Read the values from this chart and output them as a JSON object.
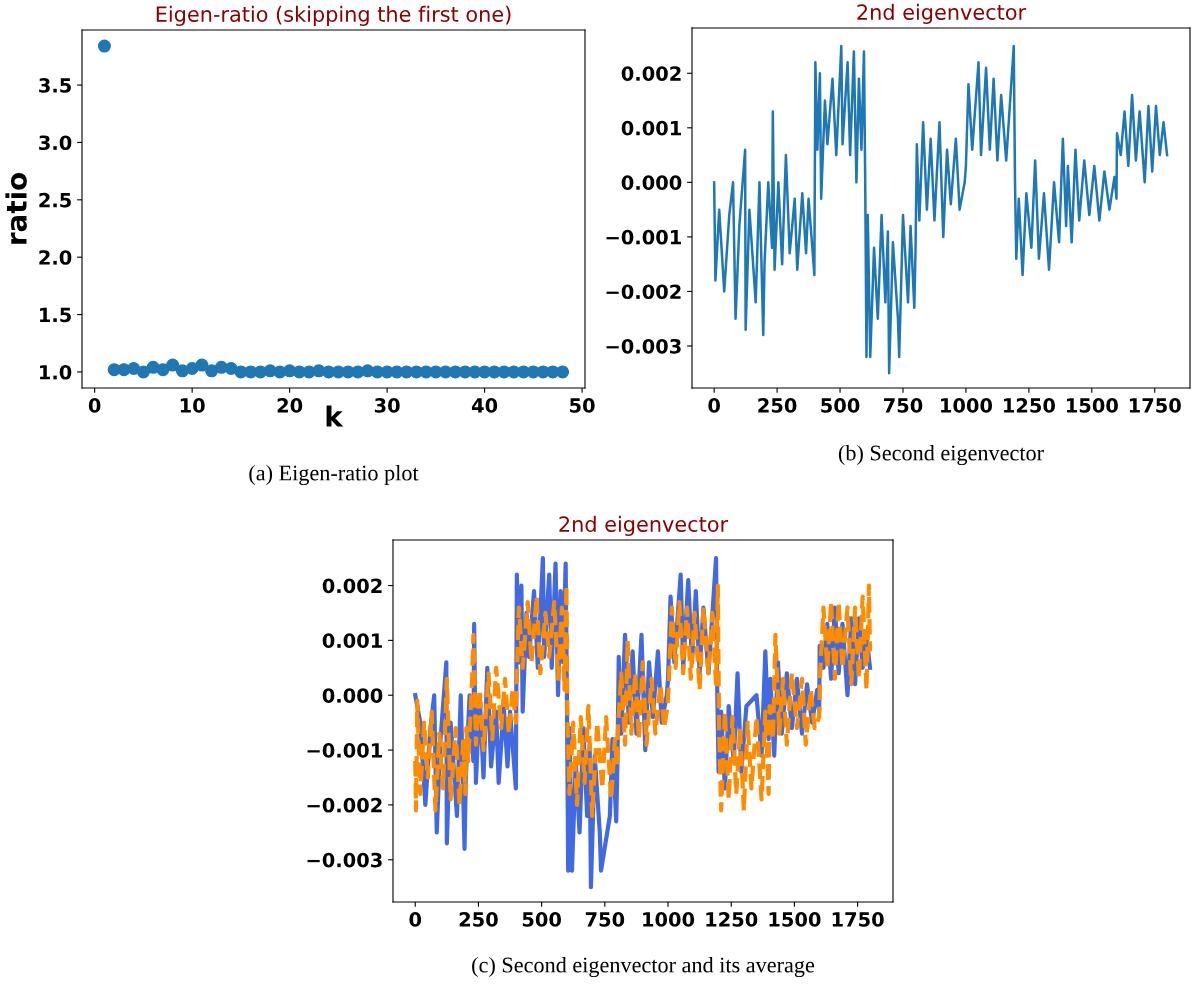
{
  "chart_data": [
    {
      "type": "scatter",
      "title": "Eigen-ratio (skipping the first one)",
      "xlabel": "k",
      "ylabel": "ratio",
      "marker": "circle",
      "grid": false,
      "x": [
        1,
        2,
        3,
        4,
        5,
        6,
        7,
        8,
        9,
        10,
        11,
        12,
        13,
        14,
        15,
        16,
        17,
        18,
        19,
        20,
        21,
        22,
        23,
        24,
        25,
        26,
        27,
        28,
        29,
        30,
        31,
        32,
        33,
        34,
        35,
        36,
        37,
        38,
        39,
        40,
        41,
        42,
        43,
        44,
        45,
        46,
        47,
        48
      ],
      "series": [
        {
          "color": "#1f77b4",
          "values": [
            3.84,
            1.02,
            1.02,
            1.03,
            1.0,
            1.04,
            1.02,
            1.06,
            1.01,
            1.03,
            1.06,
            1.01,
            1.04,
            1.03,
            1.0,
            1.0,
            1.0,
            1.01,
            1.0,
            1.01,
            1.0,
            1.0,
            1.01,
            1.0,
            1.0,
            1.0,
            1.0,
            1.01,
            1.0,
            1.0,
            1.0,
            1.0,
            1.0,
            1.0,
            1.0,
            1.0,
            1.0,
            1.0,
            1.0,
            1.0,
            1.0,
            1.0,
            1.0,
            1.0,
            1.0,
            1.0,
            1.0,
            1.0
          ]
        }
      ],
      "xlim": [
        -1.3,
        50.3
      ],
      "ylim": [
        0.86,
        3.98
      ],
      "xticks": [
        0,
        10,
        20,
        30,
        40,
        50
      ],
      "yticks": [
        {
          "value": 1.0,
          "label": "1.0"
        },
        {
          "value": 1.5,
          "label": "1.5"
        },
        {
          "value": 2.0,
          "label": "2.0"
        },
        {
          "value": 2.5,
          "label": "2.5"
        },
        {
          "value": 3.0,
          "label": "3.0"
        },
        {
          "value": 3.5,
          "label": "3.5"
        }
      ],
      "annotations": [
        "(a) Eigen-ratio plot"
      ]
    },
    {
      "type": "line",
      "title": "2nd eigenvector",
      "grid": false,
      "line_style": "solid",
      "series": [
        {
          "color": "#1f77b4",
          "x": [
            0,
            5,
            20,
            40,
            60,
            75,
            85,
            100,
            123,
            125,
            140,
            165,
            180,
            195,
            200,
            215,
            230,
            233,
            240,
            255,
            270,
            285,
            300,
            320,
            330,
            350,
            365,
            375,
            390,
            398,
            402,
            410,
            420,
            425,
            440,
            450,
            470,
            485,
            505,
            510,
            530,
            540,
            555,
            565,
            575,
            585,
            595,
            600,
            605,
            610,
            620,
            635,
            650,
            665,
            680,
            690,
            695,
            710,
            730,
            735,
            750,
            770,
            780,
            795,
            800,
            805,
            815,
            830,
            845,
            860,
            875,
            895,
            910,
            925,
            940,
            960,
            975,
            995,
            1000,
            1010,
            1025,
            1050,
            1060,
            1080,
            1095,
            1110,
            1125,
            1140,
            1160,
            1190,
            1195,
            1200,
            1210,
            1225,
            1240,
            1260,
            1275,
            1290,
            1310,
            1330,
            1350,
            1370,
            1385,
            1398,
            1405,
            1420,
            1435,
            1450,
            1470,
            1490,
            1510,
            1530,
            1550,
            1570,
            1590,
            1598,
            1600,
            1615,
            1630,
            1645,
            1660,
            1675,
            1690,
            1710,
            1725,
            1740,
            1755,
            1770,
            1785,
            1799
          ],
          "values": [
            0.0,
            -0.0018,
            -0.0005,
            -0.002,
            -0.0006,
            0.0,
            -0.0025,
            -0.0008,
            0.0006,
            -0.0027,
            -0.0005,
            -0.0022,
            0.0,
            -0.0028,
            -0.0015,
            0.0,
            -0.0012,
            0.0013,
            -0.0016,
            0.0,
            -0.0015,
            0.0005,
            -0.0013,
            -0.0003,
            -0.0016,
            -0.0002,
            -0.0013,
            -0.0003,
            -0.0012,
            -0.0017,
            0.0022,
            0.0006,
            0.002,
            -0.0003,
            0.0015,
            0.0007,
            0.0019,
            0.0005,
            0.0025,
            0.0007,
            0.0022,
            0.0005,
            0.0024,
            0.0,
            0.0019,
            0.0006,
            0.0024,
            0.0,
            -0.0032,
            -0.0006,
            -0.0032,
            -0.0012,
            -0.0025,
            -0.0006,
            -0.0022,
            -0.0009,
            -0.0035,
            -0.0011,
            -0.0025,
            -0.0032,
            -0.0006,
            -0.0022,
            -0.0008,
            -0.0023,
            -0.0012,
            0.0007,
            -0.0007,
            0.0011,
            -0.0005,
            0.0008,
            -0.0007,
            0.0011,
            -0.001,
            0.0006,
            -0.0004,
            0.0008,
            -0.0005,
            0.0,
            0.0003,
            0.0018,
            0.0006,
            0.0022,
            0.0005,
            0.0021,
            0.0006,
            0.0019,
            0.0004,
            0.0016,
            0.0004,
            0.0025,
            0.0,
            -0.0014,
            -0.0003,
            -0.0017,
            -0.0002,
            -0.0012,
            0.0004,
            -0.0014,
            -0.0002,
            -0.0016,
            0.0,
            -0.0011,
            0.0008,
            -0.0008,
            0.0003,
            -0.0011,
            0.0006,
            -0.0007,
            0.0004,
            -0.0006,
            0.0003,
            -0.0007,
            0.0002,
            -0.0005,
            0.0001,
            -0.0003,
            0.0009,
            0.0005,
            0.0013,
            0.0003,
            0.0016,
            0.0004,
            0.0013,
            0.0,
            0.0014,
            0.0002,
            0.0014,
            0.0005,
            0.0011,
            0.0005
          ]
        }
      ],
      "xlim": [
        -88,
        1890
      ],
      "ylim": [
        -0.00377,
        0.00283
      ],
      "xticks": [
        0,
        250,
        500,
        750,
        1000,
        1250,
        1500,
        1750
      ],
      "yticks": [
        {
          "value": -0.003,
          "label": "−0.003"
        },
        {
          "value": -0.002,
          "label": "−0.002"
        },
        {
          "value": -0.001,
          "label": "−0.001"
        },
        {
          "value": 0.0,
          "label": "0.000"
        },
        {
          "value": 0.001,
          "label": "0.001"
        },
        {
          "value": 0.002,
          "label": "0.002"
        }
      ],
      "annotations": [
        "(b) Second eigenvector"
      ]
    },
    {
      "type": "line",
      "title": "2nd eigenvector",
      "grid": false,
      "series": [
        {
          "color": "#4169e1",
          "line_style": "solid",
          "x": [
            0,
            20,
            40,
            60,
            75,
            85,
            100,
            123,
            125,
            140,
            165,
            180,
            195,
            200,
            215,
            230,
            233,
            240,
            255,
            270,
            285,
            300,
            320,
            330,
            350,
            365,
            375,
            390,
            398,
            402,
            410,
            420,
            425,
            440,
            450,
            470,
            485,
            505,
            510,
            530,
            540,
            555,
            565,
            575,
            585,
            595,
            600,
            605,
            610,
            620,
            635,
            650,
            665,
            680,
            690,
            695,
            710,
            730,
            735,
            770,
            780,
            795,
            800,
            805,
            815,
            830,
            845,
            860,
            875,
            895,
            910,
            925,
            940,
            960,
            975,
            995,
            1000,
            1010,
            1025,
            1050,
            1060,
            1080,
            1095,
            1110,
            1125,
            1140,
            1160,
            1190,
            1195,
            1200,
            1210,
            1225,
            1240,
            1260,
            1275,
            1290,
            1310,
            1350,
            1370,
            1385,
            1398,
            1405,
            1420,
            1435,
            1450,
            1470,
            1490,
            1510,
            1530,
            1550,
            1570,
            1590,
            1598,
            1600,
            1615,
            1630,
            1645,
            1660,
            1675,
            1690,
            1710,
            1725,
            1740,
            1755,
            1770,
            1785,
            1799
          ],
          "values": [
            0.0,
            -0.0005,
            -0.002,
            -0.0006,
            0.0,
            -0.0025,
            -0.0008,
            0.0006,
            -0.0027,
            -0.0005,
            -0.0022,
            0.0,
            -0.0028,
            -0.0015,
            0.0,
            -0.0012,
            0.0013,
            -0.0016,
            0.0,
            -0.0015,
            0.0005,
            -0.0013,
            -0.0003,
            -0.0016,
            -0.0002,
            -0.0013,
            -0.0003,
            -0.0012,
            -0.0017,
            0.0022,
            0.0006,
            0.002,
            -0.0003,
            0.0015,
            0.0007,
            0.0019,
            0.0005,
            0.0025,
            0.0007,
            0.0022,
            0.0005,
            0.0024,
            0.0,
            0.0019,
            0.0006,
            0.0024,
            0.0,
            -0.0032,
            -0.0006,
            -0.0032,
            -0.0012,
            -0.0025,
            -0.0006,
            -0.0022,
            -0.0009,
            -0.0035,
            -0.0011,
            -0.0025,
            -0.0032,
            -0.0022,
            -0.0008,
            -0.0023,
            -0.0012,
            0.0007,
            -0.0007,
            0.0011,
            -0.0005,
            0.0008,
            -0.0007,
            0.0011,
            -0.001,
            0.0006,
            -0.0004,
            0.0008,
            -0.0005,
            0.0,
            0.0003,
            0.0018,
            0.0006,
            0.0022,
            0.0005,
            0.0021,
            0.0006,
            0.0019,
            0.0004,
            0.0016,
            0.0004,
            0.0025,
            0.0,
            -0.0014,
            -0.0003,
            -0.0017,
            -0.0002,
            -0.0012,
            0.0004,
            -0.0014,
            -0.0002,
            0.0,
            -0.0011,
            0.0008,
            -0.0008,
            0.0003,
            -0.0011,
            0.0006,
            -0.0007,
            0.0004,
            -0.0006,
            0.0003,
            -0.0007,
            0.0002,
            -0.0005,
            0.0001,
            -0.0003,
            0.0009,
            0.0005,
            0.0013,
            0.0003,
            0.0016,
            0.0004,
            0.0013,
            0.0,
            0.0014,
            0.0002,
            0.0014,
            0.0005,
            0.0011,
            0.0005
          ]
        },
        {
          "color": "#ff8c00",
          "line_style": "dashed",
          "x": [
            0,
            3,
            8,
            20,
            35,
            50,
            65,
            80,
            95,
            110,
            125,
            140,
            160,
            175,
            190,
            198,
            202,
            210,
            225,
            230,
            240,
            255,
            270,
            290,
            305,
            320,
            340,
            355,
            370,
            385,
            398,
            402,
            410,
            425,
            445,
            460,
            480,
            495,
            515,
            530,
            550,
            565,
            580,
            590,
            598,
            602,
            610,
            625,
            640,
            655,
            670,
            685,
            700,
            720,
            740,
            755,
            775,
            790,
            798,
            802,
            815,
            830,
            840,
            855,
            870,
            885,
            900,
            915,
            935,
            950,
            970,
            985,
            998,
            1002,
            1015,
            1030,
            1045,
            1060,
            1075,
            1090,
            1105,
            1125,
            1140,
            1160,
            1175,
            1190,
            1197,
            1202,
            1210,
            1225,
            1240,
            1255,
            1270,
            1285,
            1300,
            1315,
            1330,
            1350,
            1370,
            1385,
            1398,
            1402,
            1415,
            1425,
            1440,
            1455,
            1470,
            1490,
            1510,
            1530,
            1545,
            1565,
            1580,
            1598,
            1602,
            1615,
            1630,
            1645,
            1660,
            1675,
            1690,
            1710,
            1725,
            1740,
            1755,
            1770,
            1785,
            1795,
            1799
          ],
          "values": [
            -0.0012,
            -0.0021,
            -0.0001,
            -0.0018,
            -0.0005,
            -0.0015,
            -0.0003,
            -0.0021,
            -0.0007,
            -0.0017,
            0.0003,
            -0.0019,
            -0.0006,
            -0.002,
            -0.0008,
            -0.0018,
            -0.0006,
            -0.0012,
            0.0003,
            0.0011,
            -0.0009,
            0.0001,
            -0.001,
            0.0004,
            -0.0008,
            0.0005,
            -0.0006,
            0.0003,
            -0.0007,
            0.0001,
            -0.0005,
            0.0003,
            0.0016,
            0.0005,
            0.0017,
            0.0006,
            0.0018,
            0.0004,
            0.0015,
            0.0007,
            0.0017,
            0.0003,
            0.0016,
            0.0001,
            0.002,
            -0.0004,
            -0.0018,
            -0.0005,
            -0.002,
            -0.0004,
            -0.0016,
            -0.0002,
            -0.0022,
            -0.0005,
            -0.0017,
            -0.0004,
            -0.0019,
            -0.0008,
            -0.0013,
            -0.0006,
            0.0004,
            -0.0009,
            0.001,
            -0.0007,
            0.0004,
            -0.0008,
            0.0006,
            -0.0009,
            0.0003,
            -0.0007,
            0.0002,
            -0.0006,
            -0.0002,
            0.0001,
            0.0016,
            0.0005,
            0.0017,
            0.0004,
            0.0016,
            0.0003,
            0.0015,
            0.0001,
            0.0016,
            0.0004,
            0.0015,
            0.0002,
            0.002,
            -0.0006,
            -0.0021,
            -0.0003,
            -0.0019,
            -0.0004,
            -0.0018,
            -0.0006,
            -0.0021,
            -0.0005,
            -0.0017,
            -0.0004,
            -0.0019,
            -0.0003,
            -0.0018,
            -0.0002,
            -0.0008,
            0.0011,
            -0.0007,
            0.0003,
            -0.0009,
            0.0004,
            -0.0006,
            0.0003,
            -0.0009,
            0.0001,
            -0.0006,
            -0.0004,
            0.0004,
            0.0016,
            0.0005,
            0.0017,
            0.0003,
            0.0017,
            0.0005,
            0.0016,
            0.0002,
            0.0016,
            0.0003,
            0.0018,
            0.0001,
            0.002,
            0.0008
          ]
        }
      ],
      "xlim": [
        -88,
        1890
      ],
      "ylim": [
        -0.00377,
        0.00283
      ],
      "xticks": [
        0,
        250,
        500,
        750,
        1000,
        1250,
        1500,
        1750
      ],
      "yticks": [
        {
          "value": -0.003,
          "label": "−0.003"
        },
        {
          "value": -0.002,
          "label": "−0.002"
        },
        {
          "value": -0.001,
          "label": "−0.001"
        },
        {
          "value": 0.0,
          "label": "0.000"
        },
        {
          "value": 0.001,
          "label": "0.001"
        },
        {
          "value": 0.002,
          "label": "0.002"
        }
      ],
      "annotations": [
        "(c) Second eigenvector and its average"
      ]
    }
  ]
}
